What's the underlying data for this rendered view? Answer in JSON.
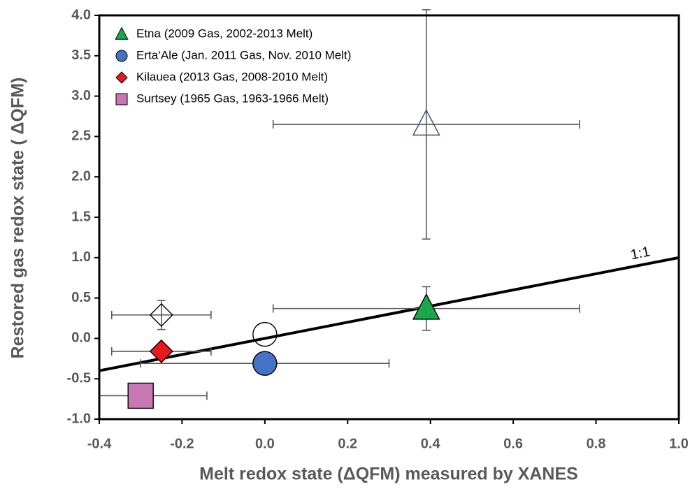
{
  "chart_data": {
    "type": "scatter",
    "xlabel": "Melt redox state (ΔQFM) measured by XANES",
    "ylabel": "Restored gas redox state ( ΔQFM)",
    "xlim": [
      -0.4,
      1.0
    ],
    "ylim": [
      -1.0,
      4.0
    ],
    "xticks": [
      -0.4,
      -0.2,
      {
        "value": 0,
        "label": "0.0"
      },
      0.2,
      0.4,
      0.6,
      0.8,
      {
        "value": 1,
        "label": "1.0"
      }
    ],
    "yticks": [
      {
        "value": -1,
        "label": "-1.0"
      },
      -0.5,
      {
        "value": 0,
        "label": "0.0"
      },
      0.5,
      {
        "value": 1,
        "label": "1.0"
      },
      1.5,
      {
        "value": 2,
        "label": "2.0"
      },
      2.5,
      {
        "value": 3,
        "label": "3.0"
      },
      3.5,
      {
        "value": 4,
        "label": "4.0"
      }
    ],
    "legend": "upper left",
    "ref_line": {
      "x": [
        -0.4,
        1.0
      ],
      "y": [
        -0.4,
        1.0
      ],
      "label": "1:1"
    },
    "series": [
      {
        "name": "Etna (2009 Gas, 2002-2013 Melt)",
        "marker": "triangle",
        "color": "#1aa84a",
        "x": [
          0.39,
          0.39
        ],
        "values": [
          0.37,
          2.65
        ],
        "xerr": [
          0.37,
          0.37
        ],
        "yerr": [
          0.27,
          1.42
        ],
        "filled": [
          true,
          false
        ],
        "edge_colors": [
          "#000000",
          "#2f4a7a"
        ]
      },
      {
        "name": "Erta‘Ale (Jan. 2011 Gas, Nov. 2010 Melt)",
        "marker": "circle",
        "color": "#4472c4",
        "x": [
          0.0,
          0.0
        ],
        "values": [
          -0.31,
          0.05
        ],
        "xerr": [
          0.3,
          null
        ],
        "yerr": [
          null,
          null
        ],
        "filled": [
          true,
          false
        ],
        "edge_colors": [
          "#000000",
          "#000000"
        ]
      },
      {
        "name": "Kilauea (2013 Gas, 2008-2010 Melt)",
        "marker": "diamond",
        "color": "#e8191c",
        "x": [
          -0.25,
          -0.25
        ],
        "values": [
          -0.16,
          0.29
        ],
        "xerr": [
          0.12,
          0.12
        ],
        "yerr": [
          null,
          0.18
        ],
        "filled": [
          true,
          false
        ],
        "edge_colors": [
          "#000000",
          "#000000"
        ]
      },
      {
        "name": "Surtsey (1965 Gas, 1963-1966 Melt)",
        "marker": "square",
        "color": "#c678b4",
        "x": [
          -0.3
        ],
        "values": [
          -0.71
        ],
        "xerr": [
          0.16
        ],
        "yerr": [
          null
        ],
        "filled": [
          true
        ],
        "edge_colors": [
          "#000000"
        ]
      }
    ]
  }
}
